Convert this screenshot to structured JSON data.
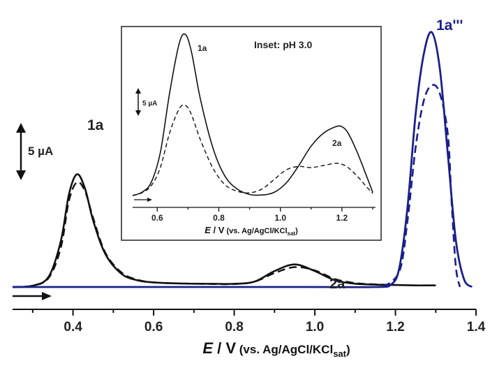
{
  "chart_data": [
    {
      "type": "line",
      "xlabel": {
        "var": "E",
        "unit": " / V",
        "ref": " (vs. Ag/AgCl/KCl",
        "sub": "sat",
        "close": ")"
      },
      "xlim": [
        0.25,
        1.4
      ],
      "xticks": [
        "0.4",
        "0.6",
        "0.8",
        "1.0",
        "1.2",
        "1.4"
      ],
      "scale_bar": "5 µA",
      "scale_bar_uA": 5,
      "peak_labels": [
        "1a",
        "2a",
        "1a'''"
      ],
      "colors": {
        "black": "#111111",
        "blue": "#1a1f8c"
      },
      "series": [
        {
          "style": "black-solid",
          "x": [
            0.25,
            0.3,
            0.34,
            0.37,
            0.39,
            0.41,
            0.43,
            0.45,
            0.48,
            0.52,
            0.56,
            0.6,
            0.65,
            0.7,
            0.75,
            0.8,
            0.85,
            0.9,
            0.95,
            1.0,
            1.05,
            1.1,
            1.15,
            1.2,
            1.25,
            1.28,
            1.3
          ],
          "y": [
            0.0,
            0.1,
            0.8,
            3.5,
            7.0,
            8.5,
            7.4,
            5.0,
            2.5,
            1.0,
            0.5,
            0.35,
            0.28,
            0.25,
            0.24,
            0.24,
            0.4,
            1.2,
            1.7,
            1.2,
            0.5,
            0.25,
            0.18,
            0.15,
            0.12,
            0.12,
            0.12
          ]
        },
        {
          "style": "black-dashed",
          "x": [
            0.25,
            0.3,
            0.34,
            0.37,
            0.39,
            0.41,
            0.43,
            0.45,
            0.48,
            0.52,
            0.56,
            0.6,
            0.65,
            0.7,
            0.75,
            0.8,
            0.85,
            0.9,
            0.95,
            1.0,
            1.05,
            1.1,
            1.15,
            1.2
          ],
          "y": [
            0.0,
            0.1,
            0.7,
            3.0,
            6.5,
            7.9,
            7.2,
            5.2,
            2.6,
            1.1,
            0.55,
            0.35,
            0.28,
            0.25,
            0.22,
            0.22,
            0.4,
            1.05,
            1.5,
            1.25,
            0.6,
            0.3,
            0.2,
            0.15
          ]
        },
        {
          "style": "blue-solid",
          "x": [
            0.25,
            0.6,
            1.0,
            1.15,
            1.19,
            1.21,
            1.23,
            1.25,
            1.27,
            1.29,
            1.31,
            1.33,
            1.35,
            1.37,
            1.39
          ],
          "y": [
            0.0,
            0.0,
            0.0,
            0.0,
            0.2,
            1.5,
            6.0,
            13.0,
            17.5,
            19.2,
            16.5,
            10.0,
            3.5,
            0.6,
            0.0
          ]
        },
        {
          "style": "blue-dashed",
          "x": [
            1.17,
            1.21,
            1.23,
            1.25,
            1.27,
            1.29,
            1.31,
            1.33,
            1.34,
            1.35,
            1.36
          ],
          "y": [
            0.0,
            1.2,
            5.0,
            10.5,
            14.0,
            15.2,
            14.6,
            11.5,
            6.0,
            1.5,
            0.0
          ]
        }
      ]
    },
    {
      "type": "line",
      "title": "Inset: pH 3.0",
      "xlabel": {
        "var": "E",
        "unit": " / V",
        "ref": " (vs. Ag/AgCl/KCl",
        "sub": "sat",
        "close": ")"
      },
      "xlim": [
        0.52,
        1.3
      ],
      "xticks": [
        "0.6",
        "0.8",
        "1.0",
        "1.2"
      ],
      "scale_bar": "5 µA",
      "scale_bar_uA": 5,
      "peak_labels": [
        "1a",
        "2a"
      ],
      "series": [
        {
          "style": "black-solid",
          "x": [
            0.52,
            0.55,
            0.58,
            0.61,
            0.64,
            0.67,
            0.69,
            0.71,
            0.74,
            0.78,
            0.82,
            0.86,
            0.9,
            0.94,
            0.98,
            1.02,
            1.06,
            1.1,
            1.14,
            1.18,
            1.2,
            1.22,
            1.25,
            1.28,
            1.3
          ],
          "y": [
            0.0,
            0.3,
            1.2,
            4.0,
            9.5,
            14.0,
            15.0,
            13.5,
            9.0,
            4.5,
            1.8,
            0.6,
            0.1,
            0.05,
            0.3,
            1.2,
            2.8,
            4.6,
            5.8,
            6.4,
            6.4,
            5.8,
            4.0,
            1.8,
            0.3
          ]
        },
        {
          "style": "black-dashed",
          "x": [
            0.52,
            0.55,
            0.58,
            0.61,
            0.64,
            0.67,
            0.69,
            0.71,
            0.74,
            0.78,
            0.82,
            0.86,
            0.9,
            0.94,
            0.98,
            1.02,
            1.06,
            1.1,
            1.14,
            1.18,
            1.2,
            1.22,
            1.25,
            1.28,
            1.3
          ],
          "y": [
            0.0,
            0.25,
            0.9,
            2.6,
            5.8,
            8.0,
            8.4,
            7.6,
            5.2,
            2.6,
            1.0,
            0.4,
            0.25,
            0.6,
            1.5,
            2.4,
            2.7,
            2.6,
            2.8,
            3.0,
            2.9,
            2.6,
            1.8,
            0.8,
            0.2
          ]
        }
      ]
    }
  ]
}
